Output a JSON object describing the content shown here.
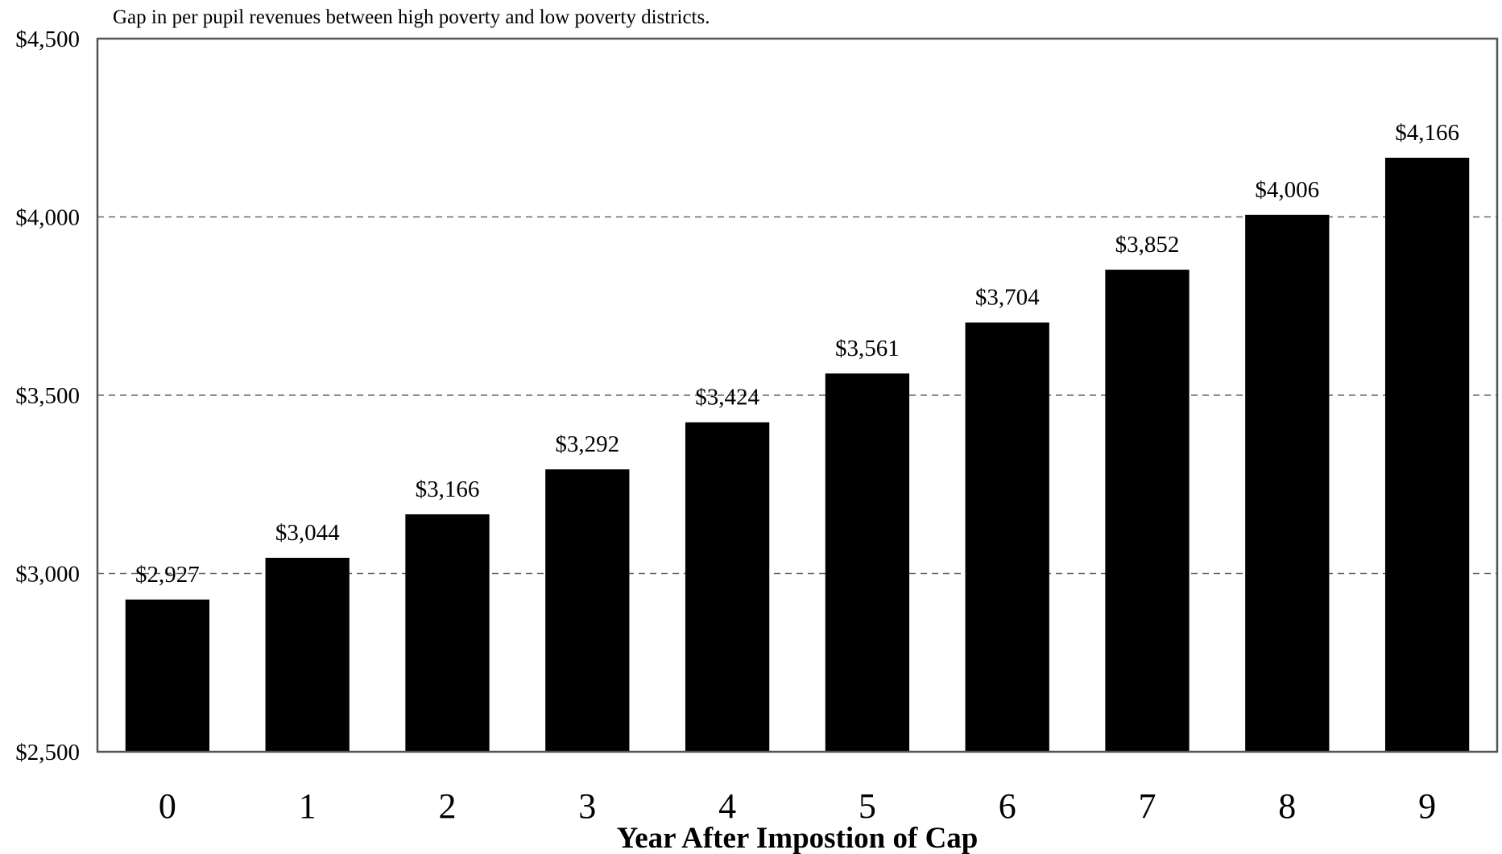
{
  "chart_data": {
    "type": "bar",
    "subtitle": "Gap in per pupil revenues between high poverty and low poverty districts.",
    "xlabel": "Year After Impostion of Cap",
    "ylabel": "",
    "categories": [
      "0",
      "1",
      "2",
      "3",
      "4",
      "5",
      "6",
      "7",
      "8",
      "9"
    ],
    "values": [
      2927,
      3044,
      3166,
      3292,
      3424,
      3561,
      3704,
      3852,
      4006,
      4166
    ],
    "data_labels": [
      "$2,927",
      "$3,044",
      "$3,166",
      "$3,292",
      "$3,424",
      "$3,561",
      "$3,704",
      "$3,852",
      "$4,006",
      "$4,166"
    ],
    "ylim": [
      2500,
      4500
    ],
    "yticks": [
      2500,
      3000,
      3500,
      4000,
      4500
    ],
    "ytick_labels": [
      "$2,500",
      "$3,000",
      "$3,500",
      "$4,000",
      "$4,500"
    ],
    "grid": "horizontal dashed at $3,000, $3,500, $4,000",
    "bar_color": "#000000",
    "legend": "none"
  }
}
